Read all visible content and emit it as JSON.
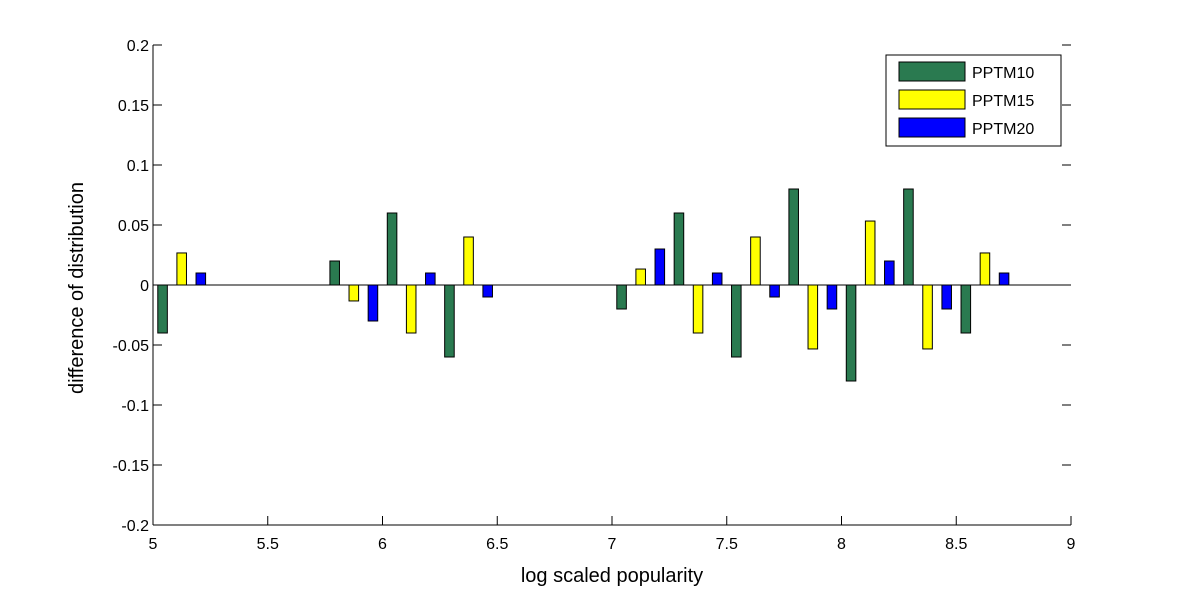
{
  "chart_data": {
    "type": "bar",
    "title": "",
    "xlabel": "log scaled popularity",
    "ylabel": "difference of distribution",
    "xlim": [
      5,
      9
    ],
    "ylim": [
      -0.2,
      0.2
    ],
    "xticks": [
      "5",
      "5.5",
      "6",
      "6.5",
      "7",
      "7.5",
      "8",
      "8.5",
      "9"
    ],
    "yticks": [
      "-0.2",
      "-0.15",
      "-0.1",
      "-0.05",
      "0",
      "0.05",
      "0.1",
      "0.15",
      "0.2"
    ],
    "grid": false,
    "legend_position": "top-right",
    "x": [
      5.125,
      5.875,
      6.125,
      6.375,
      7.125,
      7.375,
      7.625,
      7.875,
      8.125,
      8.375,
      8.625
    ],
    "series": [
      {
        "name": "PPTM10",
        "color": "#2a7a50",
        "values": [
          -0.04,
          0.02,
          0.06,
          -0.06,
          -0.02,
          0.06,
          -0.06,
          0.08,
          -0.08,
          0.08,
          -0.04
        ]
      },
      {
        "name": "PPTM15",
        "color": "#ffff00",
        "values": [
          0.0267,
          -0.0133,
          -0.04,
          0.04,
          0.0133,
          -0.04,
          0.04,
          -0.0533,
          0.0533,
          -0.0533,
          0.0267
        ]
      },
      {
        "name": "PPTM20",
        "color": "#0000ff",
        "values": [
          0.01,
          -0.03,
          0.01,
          -0.01,
          0.03,
          0.01,
          -0.01,
          -0.02,
          0.02,
          -0.02,
          0.01
        ]
      }
    ]
  }
}
